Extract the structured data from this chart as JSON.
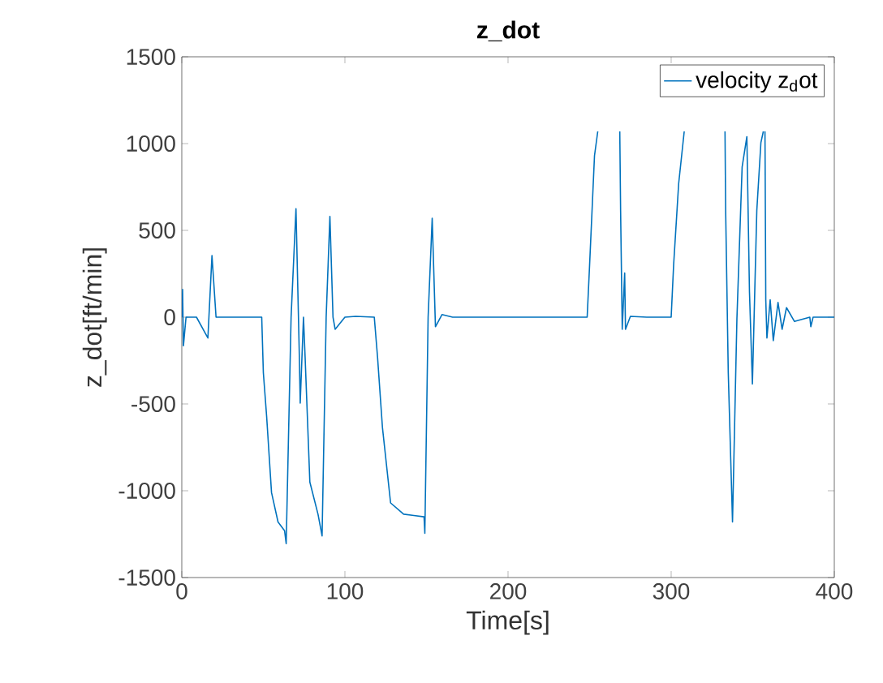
{
  "chart_data": {
    "type": "line",
    "title": "z_dot",
    "xlabel": "Time[s]",
    "ylabel": "z_dot[ft/min]",
    "xlim": [
      0,
      400
    ],
    "ylim": [
      -1500,
      1500
    ],
    "xticks": [
      0,
      100,
      200,
      300,
      400
    ],
    "yticks": [
      -1500,
      -1000,
      -500,
      0,
      500,
      1000,
      1500
    ],
    "legend": "top right",
    "grid": false,
    "marker": "none",
    "line_style": "solid",
    "series": [
      {
        "name": "velocity  z$_{d}$ot",
        "color": "#0072bd",
        "x": [
          0,
          0.5,
          1,
          2.6,
          9,
          16,
          18.5,
          21,
          49,
          50,
          52,
          55,
          59,
          63,
          64,
          67,
          70,
          72,
          72.6,
          74.6,
          75.6,
          78.5,
          83.5,
          86,
          88.5,
          90.8,
          92.7,
          94,
          100,
          106.6,
          118,
          120,
          123,
          128,
          136,
          148.5,
          149,
          151,
          153.5,
          155.5,
          159.5,
          166,
          200,
          248.5,
          250,
          253,
          255,
          262,
          268.5,
          269,
          270,
          271.5,
          272,
          275,
          285,
          300,
          301.5,
          304.6,
          308,
          320,
          333,
          333.4,
          335,
          337.6,
          340.3,
          343.5,
          346.4,
          348,
          349.8,
          352.5,
          355,
          356.5,
          357,
          357.5,
          358,
          358.7,
          360.7,
          362.6,
          365.5,
          368,
          370.7,
          375.6,
          385,
          385.6,
          387,
          400
        ],
        "values": [
          0,
          160,
          -165,
          0,
          0,
          -120,
          355,
          0,
          0,
          -320,
          -570,
          -1010,
          -1180,
          -1230,
          -1305,
          0,
          625,
          -200,
          -495,
          0,
          -230,
          -950,
          -1135,
          -1260,
          0,
          580,
          0,
          -70,
          0,
          5,
          0,
          -230,
          -635,
          -1070,
          -1135,
          -1150,
          -1245,
          0,
          570,
          -55,
          15,
          0,
          0,
          0,
          300,
          930,
          1070,
          null,
          1070,
          615,
          -70,
          255,
          -70,
          5,
          0,
          0,
          300,
          770,
          1070,
          null,
          1070,
          615,
          -320,
          -1180,
          -10,
          865,
          1040,
          145,
          -385,
          615,
          1005,
          1070,
          null,
          1070,
          100,
          -120,
          100,
          -135,
          85,
          -70,
          55,
          -25,
          0,
          -55,
          0,
          0
        ]
      }
    ]
  }
}
